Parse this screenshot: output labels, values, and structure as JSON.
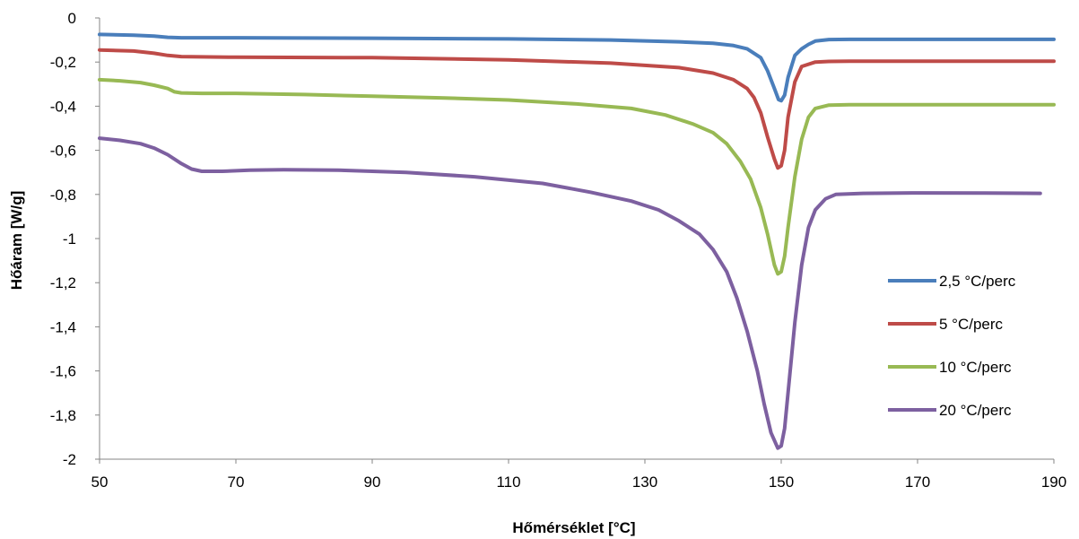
{
  "chart_data": {
    "type": "line",
    "title": "",
    "xlabel": "Hőmérséklet [°C]",
    "ylabel": "Hőáram [W/g]",
    "xlim": [
      50,
      190
    ],
    "ylim": [
      -2,
      0
    ],
    "x_ticks": [
      50,
      70,
      90,
      110,
      130,
      150,
      170,
      190
    ],
    "x_tick_labels": [
      "50",
      "70",
      "90",
      "110",
      "130",
      "150",
      "170",
      "190"
    ],
    "y_ticks": [
      0,
      -0.2,
      -0.4,
      -0.6,
      -0.8,
      -1,
      -1.2,
      -1.4,
      -1.6,
      -1.8,
      -2
    ],
    "y_tick_labels": [
      "0",
      "-0,2",
      "-0,4",
      "-0,6",
      "-0,8",
      "-1",
      "-1,2",
      "-1,4",
      "-1,6",
      "-1,8",
      "-2"
    ],
    "grid": false,
    "legend_position": "right",
    "series": [
      {
        "name": "2,5 °C/perc",
        "color": "#4a7ebb",
        "points": [
          [
            50,
            -0.075
          ],
          [
            55,
            -0.078
          ],
          [
            58,
            -0.082
          ],
          [
            60,
            -0.088
          ],
          [
            62,
            -0.09
          ],
          [
            70,
            -0.09
          ],
          [
            90,
            -0.092
          ],
          [
            110,
            -0.095
          ],
          [
            125,
            -0.1
          ],
          [
            135,
            -0.108
          ],
          [
            140,
            -0.115
          ],
          [
            143,
            -0.125
          ],
          [
            145,
            -0.14
          ],
          [
            147,
            -0.18
          ],
          [
            148,
            -0.24
          ],
          [
            149,
            -0.32
          ],
          [
            149.6,
            -0.37
          ],
          [
            150,
            -0.375
          ],
          [
            150.5,
            -0.35
          ],
          [
            151,
            -0.27
          ],
          [
            152,
            -0.17
          ],
          [
            153,
            -0.14
          ],
          [
            154,
            -0.12
          ],
          [
            155,
            -0.105
          ],
          [
            157,
            -0.098
          ],
          [
            160,
            -0.097
          ],
          [
            170,
            -0.097
          ],
          [
            190,
            -0.097
          ]
        ]
      },
      {
        "name": "5 °C/perc",
        "color": "#be4b48",
        "points": [
          [
            50,
            -0.145
          ],
          [
            55,
            -0.15
          ],
          [
            58,
            -0.16
          ],
          [
            60,
            -0.17
          ],
          [
            62,
            -0.175
          ],
          [
            70,
            -0.178
          ],
          [
            90,
            -0.18
          ],
          [
            110,
            -0.19
          ],
          [
            125,
            -0.205
          ],
          [
            135,
            -0.225
          ],
          [
            140,
            -0.25
          ],
          [
            143,
            -0.28
          ],
          [
            145,
            -0.32
          ],
          [
            146,
            -0.36
          ],
          [
            147,
            -0.43
          ],
          [
            148,
            -0.54
          ],
          [
            149,
            -0.64
          ],
          [
            149.5,
            -0.68
          ],
          [
            150,
            -0.67
          ],
          [
            150.5,
            -0.6
          ],
          [
            151,
            -0.45
          ],
          [
            152,
            -0.29
          ],
          [
            153,
            -0.22
          ],
          [
            155,
            -0.2
          ],
          [
            157,
            -0.197
          ],
          [
            160,
            -0.196
          ],
          [
            170,
            -0.196
          ],
          [
            190,
            -0.196
          ]
        ]
      },
      {
        "name": "10 °C/perc",
        "color": "#98b954",
        "points": [
          [
            50,
            -0.28
          ],
          [
            53,
            -0.285
          ],
          [
            56,
            -0.293
          ],
          [
            58,
            -0.305
          ],
          [
            60,
            -0.32
          ],
          [
            61,
            -0.335
          ],
          [
            62,
            -0.34
          ],
          [
            65,
            -0.342
          ],
          [
            70,
            -0.342
          ],
          [
            80,
            -0.347
          ],
          [
            90,
            -0.355
          ],
          [
            100,
            -0.362
          ],
          [
            110,
            -0.372
          ],
          [
            120,
            -0.39
          ],
          [
            128,
            -0.41
          ],
          [
            133,
            -0.44
          ],
          [
            137,
            -0.48
          ],
          [
            140,
            -0.52
          ],
          [
            142,
            -0.57
          ],
          [
            144,
            -0.65
          ],
          [
            145.5,
            -0.73
          ],
          [
            147,
            -0.86
          ],
          [
            148,
            -0.98
          ],
          [
            149,
            -1.12
          ],
          [
            149.5,
            -1.16
          ],
          [
            150,
            -1.15
          ],
          [
            150.5,
            -1.08
          ],
          [
            151,
            -0.95
          ],
          [
            152,
            -0.72
          ],
          [
            153,
            -0.55
          ],
          [
            154,
            -0.45
          ],
          [
            155,
            -0.41
          ],
          [
            157,
            -0.395
          ],
          [
            160,
            -0.393
          ],
          [
            170,
            -0.393
          ],
          [
            190,
            -0.393
          ]
        ]
      },
      {
        "name": "20 °C/perc",
        "color": "#7d60a0",
        "points": [
          [
            50,
            -0.545
          ],
          [
            53,
            -0.555
          ],
          [
            56,
            -0.57
          ],
          [
            58,
            -0.59
          ],
          [
            60,
            -0.62
          ],
          [
            62,
            -0.66
          ],
          [
            63.5,
            -0.685
          ],
          [
            65,
            -0.695
          ],
          [
            68,
            -0.695
          ],
          [
            72,
            -0.69
          ],
          [
            77,
            -0.688
          ],
          [
            85,
            -0.69
          ],
          [
            95,
            -0.7
          ],
          [
            105,
            -0.72
          ],
          [
            115,
            -0.75
          ],
          [
            122,
            -0.79
          ],
          [
            128,
            -0.83
          ],
          [
            132,
            -0.87
          ],
          [
            135,
            -0.92
          ],
          [
            138,
            -0.98
          ],
          [
            140,
            -1.05
          ],
          [
            142,
            -1.15
          ],
          [
            143.5,
            -1.27
          ],
          [
            145,
            -1.42
          ],
          [
            146.5,
            -1.6
          ],
          [
            147.5,
            -1.75
          ],
          [
            148.5,
            -1.88
          ],
          [
            149.5,
            -1.95
          ],
          [
            150,
            -1.94
          ],
          [
            150.5,
            -1.86
          ],
          [
            151,
            -1.7
          ],
          [
            152,
            -1.38
          ],
          [
            153,
            -1.12
          ],
          [
            154,
            -0.95
          ],
          [
            155,
            -0.87
          ],
          [
            156.5,
            -0.82
          ],
          [
            158,
            -0.8
          ],
          [
            162,
            -0.795
          ],
          [
            170,
            -0.793
          ],
          [
            180,
            -0.794
          ],
          [
            188,
            -0.795
          ]
        ]
      }
    ]
  }
}
